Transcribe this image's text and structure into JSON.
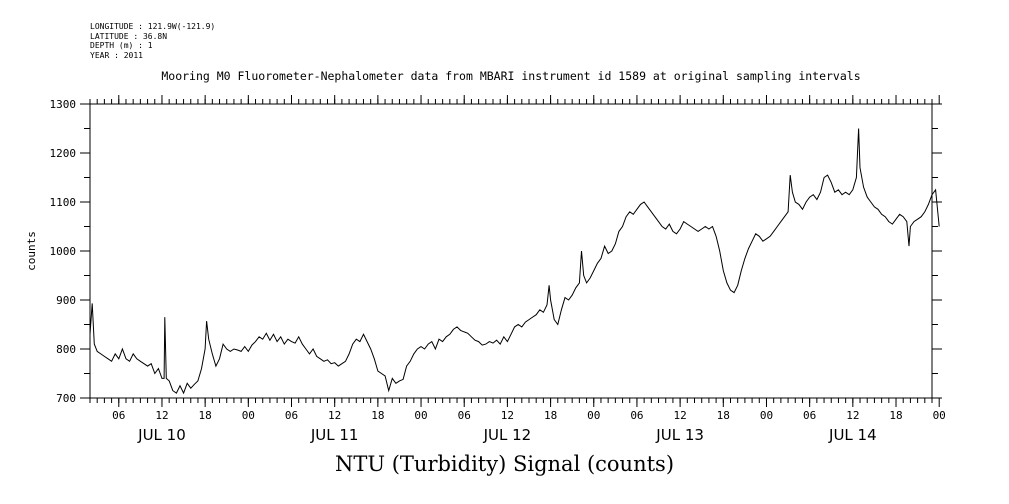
{
  "metadata": {
    "longitude": "LONGITUDE : 121.9W(-121.9)",
    "latitude": "LATITUDE : 36.8N",
    "depth": "DEPTH (m) : 1",
    "year": "YEAR : 2011"
  },
  "caption": "NTU (Turbidity) Signal (counts)",
  "chart_data": {
    "type": "line",
    "title": "Mooring M0 Fluorometer-Nephalometer data from MBARI instrument id 1589 at original sampling intervals",
    "xlabel": "",
    "ylabel": "counts",
    "x_unit": "hours",
    "xlim": [
      2,
      119
    ],
    "ylim": [
      700,
      1300
    ],
    "yticks": [
      700,
      800,
      900,
      1000,
      1100,
      1200,
      1300
    ],
    "xtick_labels": [
      {
        "hour": 6,
        "label": "06"
      },
      {
        "hour": 12,
        "label": "12"
      },
      {
        "hour": 18,
        "label": "18"
      },
      {
        "hour": 24,
        "label": "00"
      },
      {
        "hour": 30,
        "label": "06"
      },
      {
        "hour": 36,
        "label": "12"
      },
      {
        "hour": 42,
        "label": "18"
      },
      {
        "hour": 48,
        "label": "00"
      },
      {
        "hour": 54,
        "label": "06"
      },
      {
        "hour": 60,
        "label": "12"
      },
      {
        "hour": 66,
        "label": "18"
      },
      {
        "hour": 72,
        "label": "00"
      },
      {
        "hour": 78,
        "label": "06"
      },
      {
        "hour": 84,
        "label": "12"
      },
      {
        "hour": 90,
        "label": "18"
      },
      {
        "hour": 96,
        "label": "00"
      },
      {
        "hour": 102,
        "label": "06"
      },
      {
        "hour": 108,
        "label": "12"
      },
      {
        "hour": 114,
        "label": "18"
      },
      {
        "hour": 120,
        "label": "00"
      }
    ],
    "day_labels": [
      {
        "hour": 12,
        "label": "JUL 10"
      },
      {
        "hour": 36,
        "label": "JUL 11"
      },
      {
        "hour": 60,
        "label": "JUL 12"
      },
      {
        "hour": 84,
        "label": "JUL 13"
      },
      {
        "hour": 108,
        "label": "JUL 14"
      }
    ],
    "series": [
      {
        "points": [
          [
            2.0,
            830
          ],
          [
            2.3,
            893
          ],
          [
            2.6,
            810
          ],
          [
            3.0,
            795
          ],
          [
            3.5,
            790
          ],
          [
            4.0,
            785
          ],
          [
            4.5,
            780
          ],
          [
            5.0,
            775
          ],
          [
            5.5,
            790
          ],
          [
            6.0,
            780
          ],
          [
            6.5,
            800
          ],
          [
            7.0,
            780
          ],
          [
            7.5,
            775
          ],
          [
            8.0,
            790
          ],
          [
            8.5,
            780
          ],
          [
            9.0,
            775
          ],
          [
            9.5,
            770
          ],
          [
            10.0,
            765
          ],
          [
            10.5,
            770
          ],
          [
            11.0,
            750
          ],
          [
            11.5,
            760
          ],
          [
            12.0,
            740
          ],
          [
            12.3,
            740
          ],
          [
            12.4,
            865
          ],
          [
            12.6,
            740
          ],
          [
            13.0,
            735
          ],
          [
            13.5,
            715
          ],
          [
            14.0,
            710
          ],
          [
            14.5,
            725
          ],
          [
            15.0,
            710
          ],
          [
            15.5,
            730
          ],
          [
            16.0,
            720
          ],
          [
            16.5,
            728
          ],
          [
            17.0,
            735
          ],
          [
            17.5,
            760
          ],
          [
            18.0,
            800
          ],
          [
            18.2,
            857
          ],
          [
            18.5,
            820
          ],
          [
            19.0,
            790
          ],
          [
            19.5,
            765
          ],
          [
            20.0,
            780
          ],
          [
            20.5,
            810
          ],
          [
            21.0,
            800
          ],
          [
            21.5,
            795
          ],
          [
            22.0,
            800
          ],
          [
            22.5,
            798
          ],
          [
            23.0,
            795
          ],
          [
            23.5,
            805
          ],
          [
            24.0,
            795
          ],
          [
            24.5,
            808
          ],
          [
            25.0,
            815
          ],
          [
            25.5,
            825
          ],
          [
            26.0,
            820
          ],
          [
            26.5,
            832
          ],
          [
            27.0,
            818
          ],
          [
            27.5,
            830
          ],
          [
            28.0,
            815
          ],
          [
            28.5,
            825
          ],
          [
            29.0,
            810
          ],
          [
            29.5,
            820
          ],
          [
            30.0,
            815
          ],
          [
            30.5,
            812
          ],
          [
            31.0,
            825
          ],
          [
            31.5,
            810
          ],
          [
            32.0,
            800
          ],
          [
            32.5,
            790
          ],
          [
            33.0,
            800
          ],
          [
            33.5,
            785
          ],
          [
            34.0,
            780
          ],
          [
            34.5,
            775
          ],
          [
            35.0,
            778
          ],
          [
            35.5,
            770
          ],
          [
            36.0,
            772
          ],
          [
            36.5,
            765
          ],
          [
            37.0,
            770
          ],
          [
            37.5,
            775
          ],
          [
            38.0,
            790
          ],
          [
            38.5,
            810
          ],
          [
            39.0,
            820
          ],
          [
            39.5,
            815
          ],
          [
            40.0,
            830
          ],
          [
            40.5,
            815
          ],
          [
            41.0,
            800
          ],
          [
            41.5,
            780
          ],
          [
            42.0,
            755
          ],
          [
            42.5,
            750
          ],
          [
            43.0,
            745
          ],
          [
            43.5,
            715
          ],
          [
            44.0,
            740
          ],
          [
            44.5,
            730
          ],
          [
            45.0,
            735
          ],
          [
            45.5,
            738
          ],
          [
            46.0,
            765
          ],
          [
            46.5,
            775
          ],
          [
            47.0,
            790
          ],
          [
            47.5,
            800
          ],
          [
            48.0,
            805
          ],
          [
            48.5,
            800
          ],
          [
            49.0,
            810
          ],
          [
            49.5,
            815
          ],
          [
            50.0,
            800
          ],
          [
            50.5,
            820
          ],
          [
            51.0,
            815
          ],
          [
            51.5,
            825
          ],
          [
            52.0,
            830
          ],
          [
            52.5,
            840
          ],
          [
            53.0,
            845
          ],
          [
            53.5,
            838
          ],
          [
            54.0,
            835
          ],
          [
            54.5,
            832
          ],
          [
            55.0,
            825
          ],
          [
            55.5,
            818
          ],
          [
            56.0,
            815
          ],
          [
            56.5,
            808
          ],
          [
            57.0,
            810
          ],
          [
            57.5,
            815
          ],
          [
            58.0,
            812
          ],
          [
            58.5,
            818
          ],
          [
            59.0,
            810
          ],
          [
            59.5,
            825
          ],
          [
            60.0,
            815
          ],
          [
            60.5,
            830
          ],
          [
            61.0,
            845
          ],
          [
            61.5,
            850
          ],
          [
            62.0,
            845
          ],
          [
            62.5,
            855
          ],
          [
            63.0,
            860
          ],
          [
            63.5,
            865
          ],
          [
            64.0,
            870
          ],
          [
            64.5,
            880
          ],
          [
            65.0,
            875
          ],
          [
            65.5,
            890
          ],
          [
            65.8,
            930
          ],
          [
            66.0,
            900
          ],
          [
            66.5,
            860
          ],
          [
            67.0,
            850
          ],
          [
            67.5,
            880
          ],
          [
            68.0,
            905
          ],
          [
            68.5,
            900
          ],
          [
            69.0,
            910
          ],
          [
            69.5,
            925
          ],
          [
            70.0,
            935
          ],
          [
            70.3,
            1000
          ],
          [
            70.6,
            950
          ],
          [
            71.0,
            935
          ],
          [
            71.5,
            945
          ],
          [
            72.0,
            960
          ],
          [
            72.5,
            975
          ],
          [
            73.0,
            985
          ],
          [
            73.5,
            1010
          ],
          [
            74.0,
            995
          ],
          [
            74.5,
            1000
          ],
          [
            75.0,
            1015
          ],
          [
            75.5,
            1040
          ],
          [
            76.0,
            1050
          ],
          [
            76.5,
            1070
          ],
          [
            77.0,
            1080
          ],
          [
            77.5,
            1075
          ],
          [
            78.0,
            1085
          ],
          [
            78.5,
            1095
          ],
          [
            79.0,
            1100
          ],
          [
            79.5,
            1090
          ],
          [
            80.0,
            1080
          ],
          [
            80.5,
            1070
          ],
          [
            81.0,
            1060
          ],
          [
            81.5,
            1050
          ],
          [
            82.0,
            1045
          ],
          [
            82.5,
            1055
          ],
          [
            83.0,
            1040
          ],
          [
            83.5,
            1035
          ],
          [
            84.0,
            1045
          ],
          [
            84.5,
            1060
          ],
          [
            85.0,
            1055
          ],
          [
            85.5,
            1050
          ],
          [
            86.0,
            1045
          ],
          [
            86.5,
            1040
          ],
          [
            87.0,
            1045
          ],
          [
            87.5,
            1050
          ],
          [
            88.0,
            1045
          ],
          [
            88.5,
            1050
          ],
          [
            89.0,
            1030
          ],
          [
            89.5,
            1000
          ],
          [
            90.0,
            960
          ],
          [
            90.5,
            935
          ],
          [
            91.0,
            920
          ],
          [
            91.5,
            915
          ],
          [
            92.0,
            930
          ],
          [
            92.5,
            960
          ],
          [
            93.0,
            985
          ],
          [
            93.5,
            1005
          ],
          [
            94.0,
            1020
          ],
          [
            94.5,
            1035
          ],
          [
            95.0,
            1030
          ],
          [
            95.5,
            1020
          ],
          [
            96.0,
            1025
          ],
          [
            96.5,
            1030
          ],
          [
            97.0,
            1040
          ],
          [
            97.5,
            1050
          ],
          [
            98.0,
            1060
          ],
          [
            98.5,
            1070
          ],
          [
            99.0,
            1080
          ],
          [
            99.3,
            1155
          ],
          [
            99.6,
            1120
          ],
          [
            100.0,
            1100
          ],
          [
            100.5,
            1095
          ],
          [
            101.0,
            1085
          ],
          [
            101.5,
            1100
          ],
          [
            102.0,
            1110
          ],
          [
            102.5,
            1115
          ],
          [
            103.0,
            1105
          ],
          [
            103.5,
            1120
          ],
          [
            104.0,
            1150
          ],
          [
            104.5,
            1155
          ],
          [
            105.0,
            1140
          ],
          [
            105.5,
            1120
          ],
          [
            106.0,
            1125
          ],
          [
            106.5,
            1115
          ],
          [
            107.0,
            1120
          ],
          [
            107.5,
            1115
          ],
          [
            108.0,
            1125
          ],
          [
            108.5,
            1150
          ],
          [
            108.8,
            1250
          ],
          [
            109.0,
            1170
          ],
          [
            109.5,
            1130
          ],
          [
            110.0,
            1110
          ],
          [
            110.5,
            1100
          ],
          [
            111.0,
            1090
          ],
          [
            111.5,
            1085
          ],
          [
            112.0,
            1075
          ],
          [
            112.5,
            1070
          ],
          [
            113.0,
            1060
          ],
          [
            113.5,
            1055
          ],
          [
            114.0,
            1065
          ],
          [
            114.5,
            1075
          ],
          [
            115.0,
            1070
          ],
          [
            115.5,
            1060
          ],
          [
            115.8,
            1010
          ],
          [
            116.0,
            1050
          ],
          [
            116.5,
            1060
          ],
          [
            117.0,
            1065
          ],
          [
            117.5,
            1070
          ],
          [
            118.0,
            1080
          ],
          [
            118.5,
            1095
          ],
          [
            119.0,
            1115
          ],
          [
            119.5,
            1125
          ],
          [
            120.0,
            1050
          ]
        ]
      }
    ]
  }
}
